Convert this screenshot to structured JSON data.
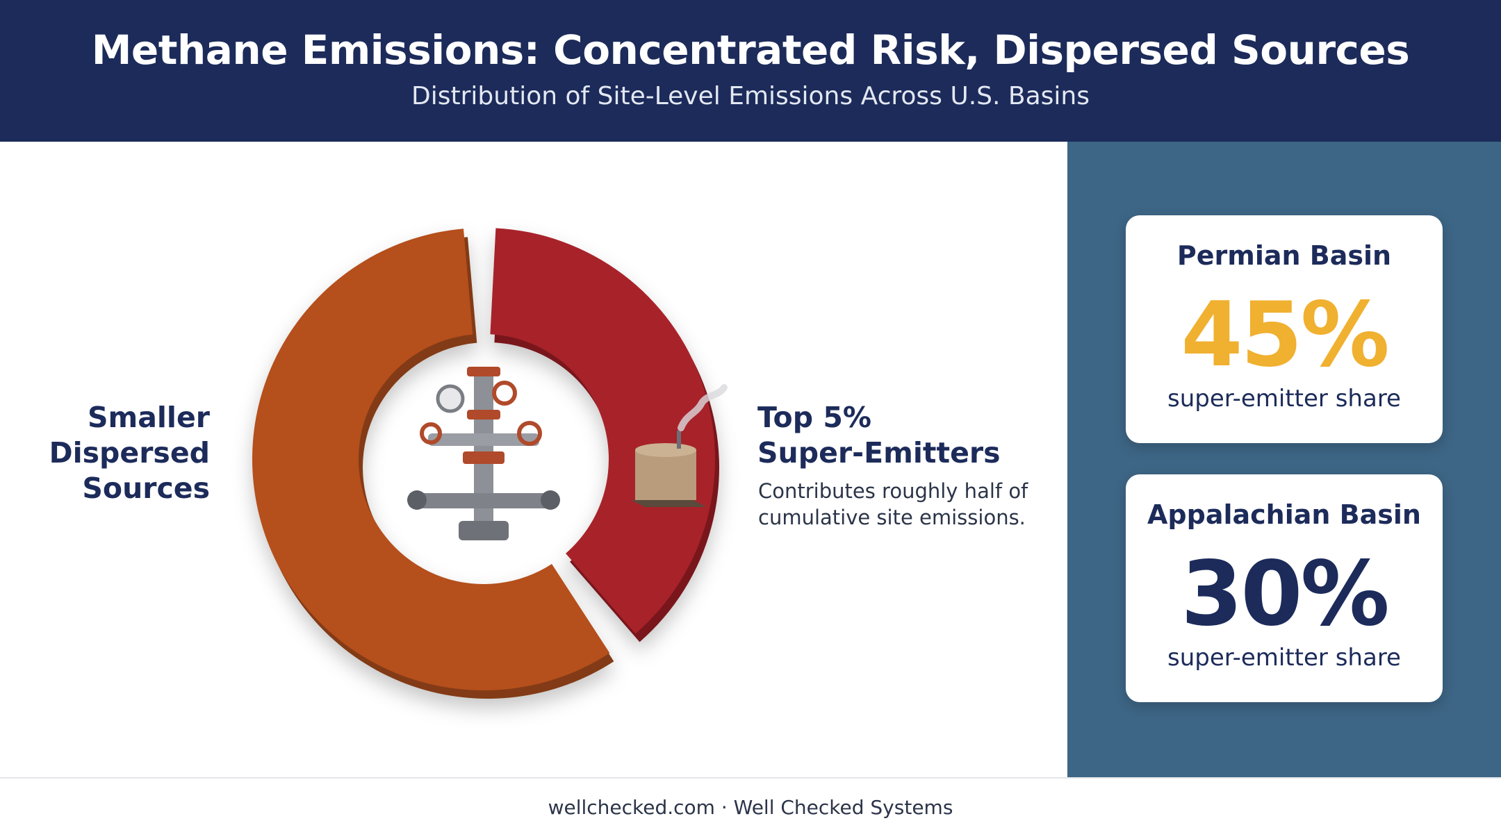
{
  "header": {
    "title": "Methane Emissions: Concentrated Risk, Dispersed Sources",
    "subtitle": "Distribution of Site-Level Emissions Across U.S. Basins"
  },
  "chart_data": {
    "type": "pie",
    "categories": [
      "Top 5% Super-Emitters",
      "Smaller Dispersed Sources"
    ],
    "values": [
      40,
      60
    ],
    "colors": [
      "#a8232a",
      "#b5501c"
    ],
    "annotation": "Contributes roughly half of cumulative site emissions."
  },
  "stats": [
    {
      "title": "Permian Basin",
      "value": "45%",
      "caption": "super-emitter share",
      "color": "#f0b030"
    },
    {
      "title": "Appalachian Basin",
      "value": "30%",
      "caption": "super-emitter share",
      "color": "#1c2b5a"
    }
  ],
  "footer": "wellchecked.com · Well Checked Systems"
}
